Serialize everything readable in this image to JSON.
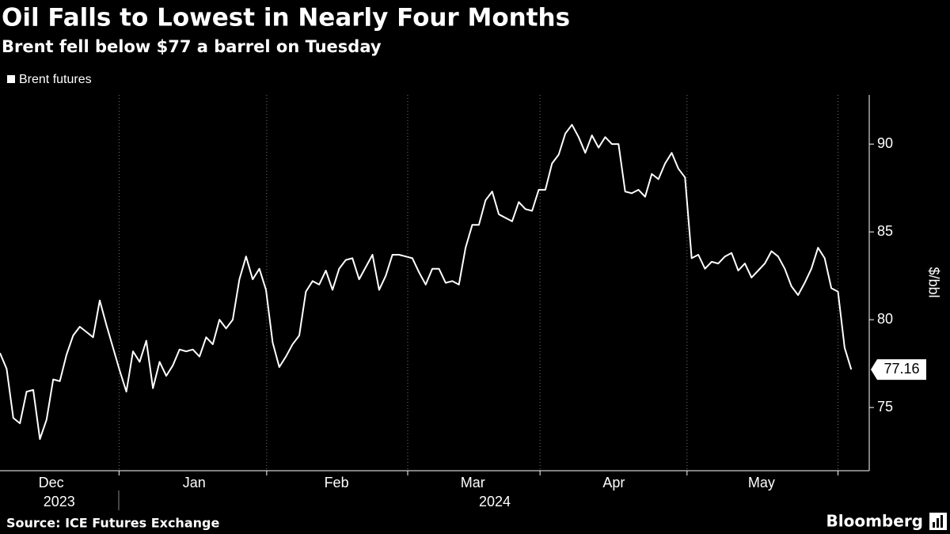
{
  "chart_data": {
    "type": "line",
    "title": "Oil Falls to Lowest in Nearly Four Months",
    "subtitle": "Brent fell below $77 a barrel on Tuesday",
    "y_label": "$/bbl",
    "source": "Source: ICE Futures Exchange",
    "brand": "Bloomberg",
    "series": [
      {
        "name": "Brent futures",
        "color": "#ffffff",
        "values": [
          78.1,
          77.2,
          74.4,
          74.1,
          75.9,
          76.0,
          73.2,
          74.3,
          76.6,
          76.5,
          78.0,
          79.1,
          79.6,
          79.3,
          79.0,
          81.1,
          79.7,
          78.4,
          77.1,
          75.9,
          78.2,
          77.6,
          78.8,
          76.1,
          77.6,
          76.8,
          77.4,
          78.3,
          78.2,
          78.3,
          77.9,
          79.0,
          78.6,
          80.0,
          79.5,
          80.0,
          82.3,
          83.6,
          82.3,
          82.9,
          81.7,
          78.7,
          77.3,
          77.9,
          78.6,
          79.1,
          81.6,
          82.2,
          82.0,
          82.8,
          81.7,
          82.9,
          83.4,
          83.5,
          82.3,
          83.0,
          83.7,
          81.7,
          82.5,
          83.7,
          83.7,
          83.6,
          83.5,
          82.7,
          82.0,
          82.9,
          82.9,
          82.1,
          82.2,
          82.0,
          84.1,
          85.4,
          85.4,
          86.8,
          87.3,
          86.0,
          85.8,
          85.6,
          86.7,
          86.3,
          86.2,
          87.4,
          87.4,
          88.9,
          89.4,
          90.6,
          91.1,
          90.4,
          89.5,
          90.5,
          89.8,
          90.4,
          90.0,
          90.0,
          87.3,
          87.2,
          87.4,
          87.0,
          88.3,
          88.0,
          88.9,
          89.5,
          88.6,
          88.1,
          83.5,
          83.7,
          82.9,
          83.3,
          83.2,
          83.6,
          83.8,
          82.8,
          83.2,
          82.4,
          82.8,
          83.2,
          83.9,
          83.6,
          82.9,
          81.9,
          81.4,
          82.1,
          82.9,
          84.1,
          83.5,
          81.8,
          81.6,
          78.4,
          77.16
        ]
      }
    ],
    "last_label": "77.16",
    "xlim": [
      0,
      130.7
    ],
    "xticks": [
      {
        "value": 7.7,
        "label": "Dec"
      },
      {
        "value": 29.2,
        "label": "Jan"
      },
      {
        "value": 50.6,
        "label": "Feb"
      },
      {
        "value": 71.1,
        "label": "Mar"
      },
      {
        "value": 92.3,
        "label": "Apr"
      },
      {
        "value": 114.5,
        "label": "May"
      }
    ],
    "xgrid": [
      17.9,
      40.1,
      61.3,
      81.2,
      103.3,
      126
    ],
    "year_labels": [
      {
        "value": 8.9,
        "label": "2023"
      },
      {
        "value": 74.4,
        "label": "2024"
      }
    ],
    "ylim": [
      71.4,
      92.8
    ],
    "yticks": [
      75,
      80,
      85,
      90
    ],
    "grid": true
  }
}
